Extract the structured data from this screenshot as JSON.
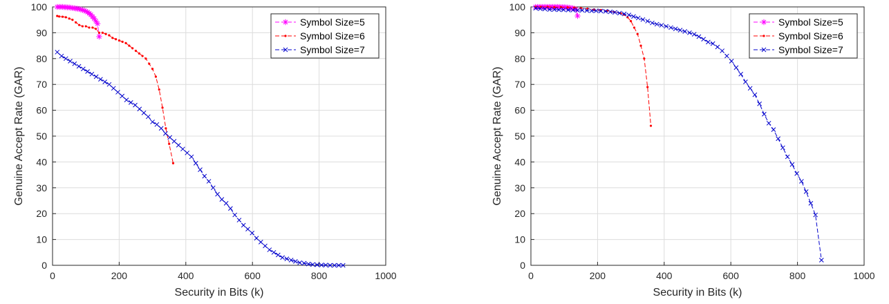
{
  "chart_data": [
    {
      "type": "line",
      "xlabel": "Security in Bits (k)",
      "ylabel": "Genuine Accept Rate (GAR)",
      "xlim": [
        0,
        1000
      ],
      "ylim": [
        0,
        100
      ],
      "xticks": [
        0,
        200,
        400,
        600,
        800,
        1000
      ],
      "yticks": [
        0,
        10,
        20,
        30,
        40,
        50,
        60,
        70,
        80,
        90,
        100
      ],
      "grid": true,
      "legend_position": "top-right",
      "series": [
        {
          "name": "Symbol Size=5",
          "color": "#ff00ff",
          "marker": "asterisk",
          "x": [
            14,
            20,
            25,
            30,
            35,
            40,
            45,
            50,
            55,
            60,
            65,
            70,
            75,
            80,
            85,
            90,
            95,
            100,
            105,
            110,
            115,
            120,
            125,
            130,
            135,
            140
          ],
          "y": [
            100,
            100,
            100,
            100,
            99.9,
            99.9,
            99.8,
            99.8,
            99.7,
            99.6,
            99.5,
            99.4,
            99.3,
            99.2,
            99.0,
            98.8,
            98.6,
            98.3,
            98.0,
            97.5,
            97.0,
            96.2,
            95.5,
            94.5,
            93.5,
            88.5
          ]
        },
        {
          "name": "Symbol Size=6",
          "color": "#ff0000",
          "marker": "point",
          "x": [
            14,
            20,
            30,
            40,
            50,
            60,
            70,
            80,
            90,
            100,
            110,
            120,
            130,
            140,
            150,
            160,
            170,
            180,
            190,
            200,
            210,
            220,
            230,
            240,
            250,
            260,
            270,
            280,
            290,
            300,
            310,
            320,
            330,
            340,
            350,
            362
          ],
          "y": [
            96.5,
            96.3,
            96.2,
            96.0,
            95.5,
            95.0,
            94.0,
            93.0,
            92.5,
            92.5,
            92.0,
            92.0,
            91.5,
            90.0,
            90.0,
            89.5,
            89.0,
            88.0,
            87.5,
            87.0,
            86.5,
            86.0,
            85.0,
            84.0,
            83.0,
            82.0,
            81.0,
            80.0,
            78.0,
            76.0,
            73.0,
            68.0,
            61.0,
            53.0,
            47.0,
            39.5
          ]
        },
        {
          "name": "Symbol Size=7",
          "color": "#0000cc",
          "marker": "x",
          "x": [
            14,
            27,
            40,
            53,
            66,
            79,
            92,
            105,
            118,
            131,
            144,
            157,
            170,
            183,
            196,
            209,
            222,
            235,
            248,
            261,
            274,
            287,
            300,
            313,
            326,
            339,
            352,
            365,
            378,
            391,
            404,
            417,
            430,
            443,
            456,
            469,
            482,
            495,
            508,
            521,
            534,
            547,
            560,
            573,
            586,
            599,
            612,
            625,
            638,
            651,
            664,
            677,
            690,
            703,
            716,
            729,
            742,
            755,
            768,
            781,
            794,
            807,
            820,
            833,
            846,
            859,
            872
          ],
          "y": [
            82.5,
            81.0,
            80.0,
            79.0,
            78.0,
            77.0,
            76.0,
            75.0,
            74.0,
            73.0,
            72.0,
            71.0,
            70.0,
            68.5,
            67.0,
            65.5,
            64.0,
            63.0,
            62.0,
            60.5,
            59.0,
            57.5,
            55.5,
            54.5,
            53.0,
            51.0,
            49.5,
            48.0,
            46.5,
            45.0,
            43.5,
            42.0,
            39.5,
            37.0,
            34.5,
            32.5,
            30.0,
            27.5,
            25.5,
            24.0,
            22.0,
            19.5,
            17.5,
            15.5,
            14.0,
            12.5,
            10.5,
            9.0,
            7.5,
            6.0,
            5.0,
            4.0,
            3.0,
            2.5,
            2.0,
            1.5,
            1.0,
            0.8,
            0.5,
            0.3,
            0.2,
            0.1,
            0.1,
            0.0,
            0.0,
            0.0,
            0.0
          ]
        }
      ]
    },
    {
      "type": "line",
      "xlabel": "Security in Bits (k)",
      "ylabel": "Genuine Accept Rate (GAR)",
      "xlim": [
        0,
        1000
      ],
      "ylim": [
        0,
        100
      ],
      "xticks": [
        0,
        200,
        400,
        600,
        800,
        1000
      ],
      "yticks": [
        0,
        10,
        20,
        30,
        40,
        50,
        60,
        70,
        80,
        90,
        100
      ],
      "grid": true,
      "legend_position": "top-right",
      "series": [
        {
          "name": "Symbol Size=5",
          "color": "#ff00ff",
          "marker": "asterisk",
          "x": [
            14,
            20,
            25,
            30,
            35,
            40,
            45,
            50,
            55,
            60,
            65,
            70,
            75,
            80,
            85,
            90,
            95,
            100,
            105,
            110,
            115,
            120,
            125,
            130,
            135,
            140
          ],
          "y": [
            100,
            100,
            100,
            100,
            100,
            100,
            100,
            100,
            100,
            100,
            100,
            100,
            100,
            100,
            100,
            99.9,
            99.9,
            99.9,
            99.8,
            99.8,
            99.7,
            99.6,
            99.5,
            99.3,
            99.0,
            96.5
          ]
        },
        {
          "name": "Symbol Size=6",
          "color": "#ff0000",
          "marker": "point",
          "x": [
            14,
            30,
            50,
            70,
            90,
            110,
            130,
            150,
            170,
            190,
            210,
            230,
            250,
            270,
            280,
            290,
            300,
            310,
            320,
            330,
            340,
            350,
            360
          ],
          "y": [
            100,
            100,
            100,
            99.9,
            99.9,
            99.8,
            99.7,
            99.5,
            99.3,
            99.0,
            98.8,
            98.5,
            98.0,
            97.5,
            97.0,
            96.0,
            94.5,
            92.0,
            89.5,
            85.0,
            80.0,
            69.0,
            54.0
          ]
        },
        {
          "name": "Symbol Size=7",
          "color": "#0000cc",
          "marker": "x",
          "x": [
            14,
            28,
            42,
            56,
            70,
            84,
            98,
            112,
            126,
            140,
            154,
            168,
            182,
            196,
            210,
            224,
            238,
            252,
            266,
            280,
            294,
            308,
            322,
            336,
            350,
            364,
            378,
            392,
            406,
            420,
            434,
            448,
            462,
            476,
            490,
            504,
            518,
            532,
            546,
            560,
            574,
            588,
            602,
            616,
            630,
            644,
            658,
            672,
            686,
            700,
            714,
            728,
            742,
            756,
            770,
            784,
            798,
            812,
            826,
            840,
            854,
            872
          ],
          "y": [
            99.5,
            99.3,
            99.2,
            99.0,
            99.0,
            98.9,
            98.9,
            98.8,
            98.8,
            98.7,
            98.7,
            98.6,
            98.5,
            98.5,
            98.4,
            98.3,
            98.1,
            97.9,
            97.6,
            97.3,
            96.9,
            96.3,
            95.7,
            95.1,
            94.5,
            93.8,
            93.3,
            92.9,
            92.5,
            92.0,
            91.5,
            91.0,
            90.5,
            90.0,
            89.4,
            88.5,
            87.5,
            86.4,
            85.8,
            84.5,
            83.0,
            81.0,
            79.0,
            76.5,
            74.0,
            71.0,
            68.5,
            66.0,
            62.5,
            58.5,
            55.0,
            52.5,
            49.0,
            45.5,
            42.0,
            39.0,
            35.5,
            32.5,
            28.5,
            24.0,
            19.5,
            2.0
          ]
        }
      ]
    }
  ]
}
